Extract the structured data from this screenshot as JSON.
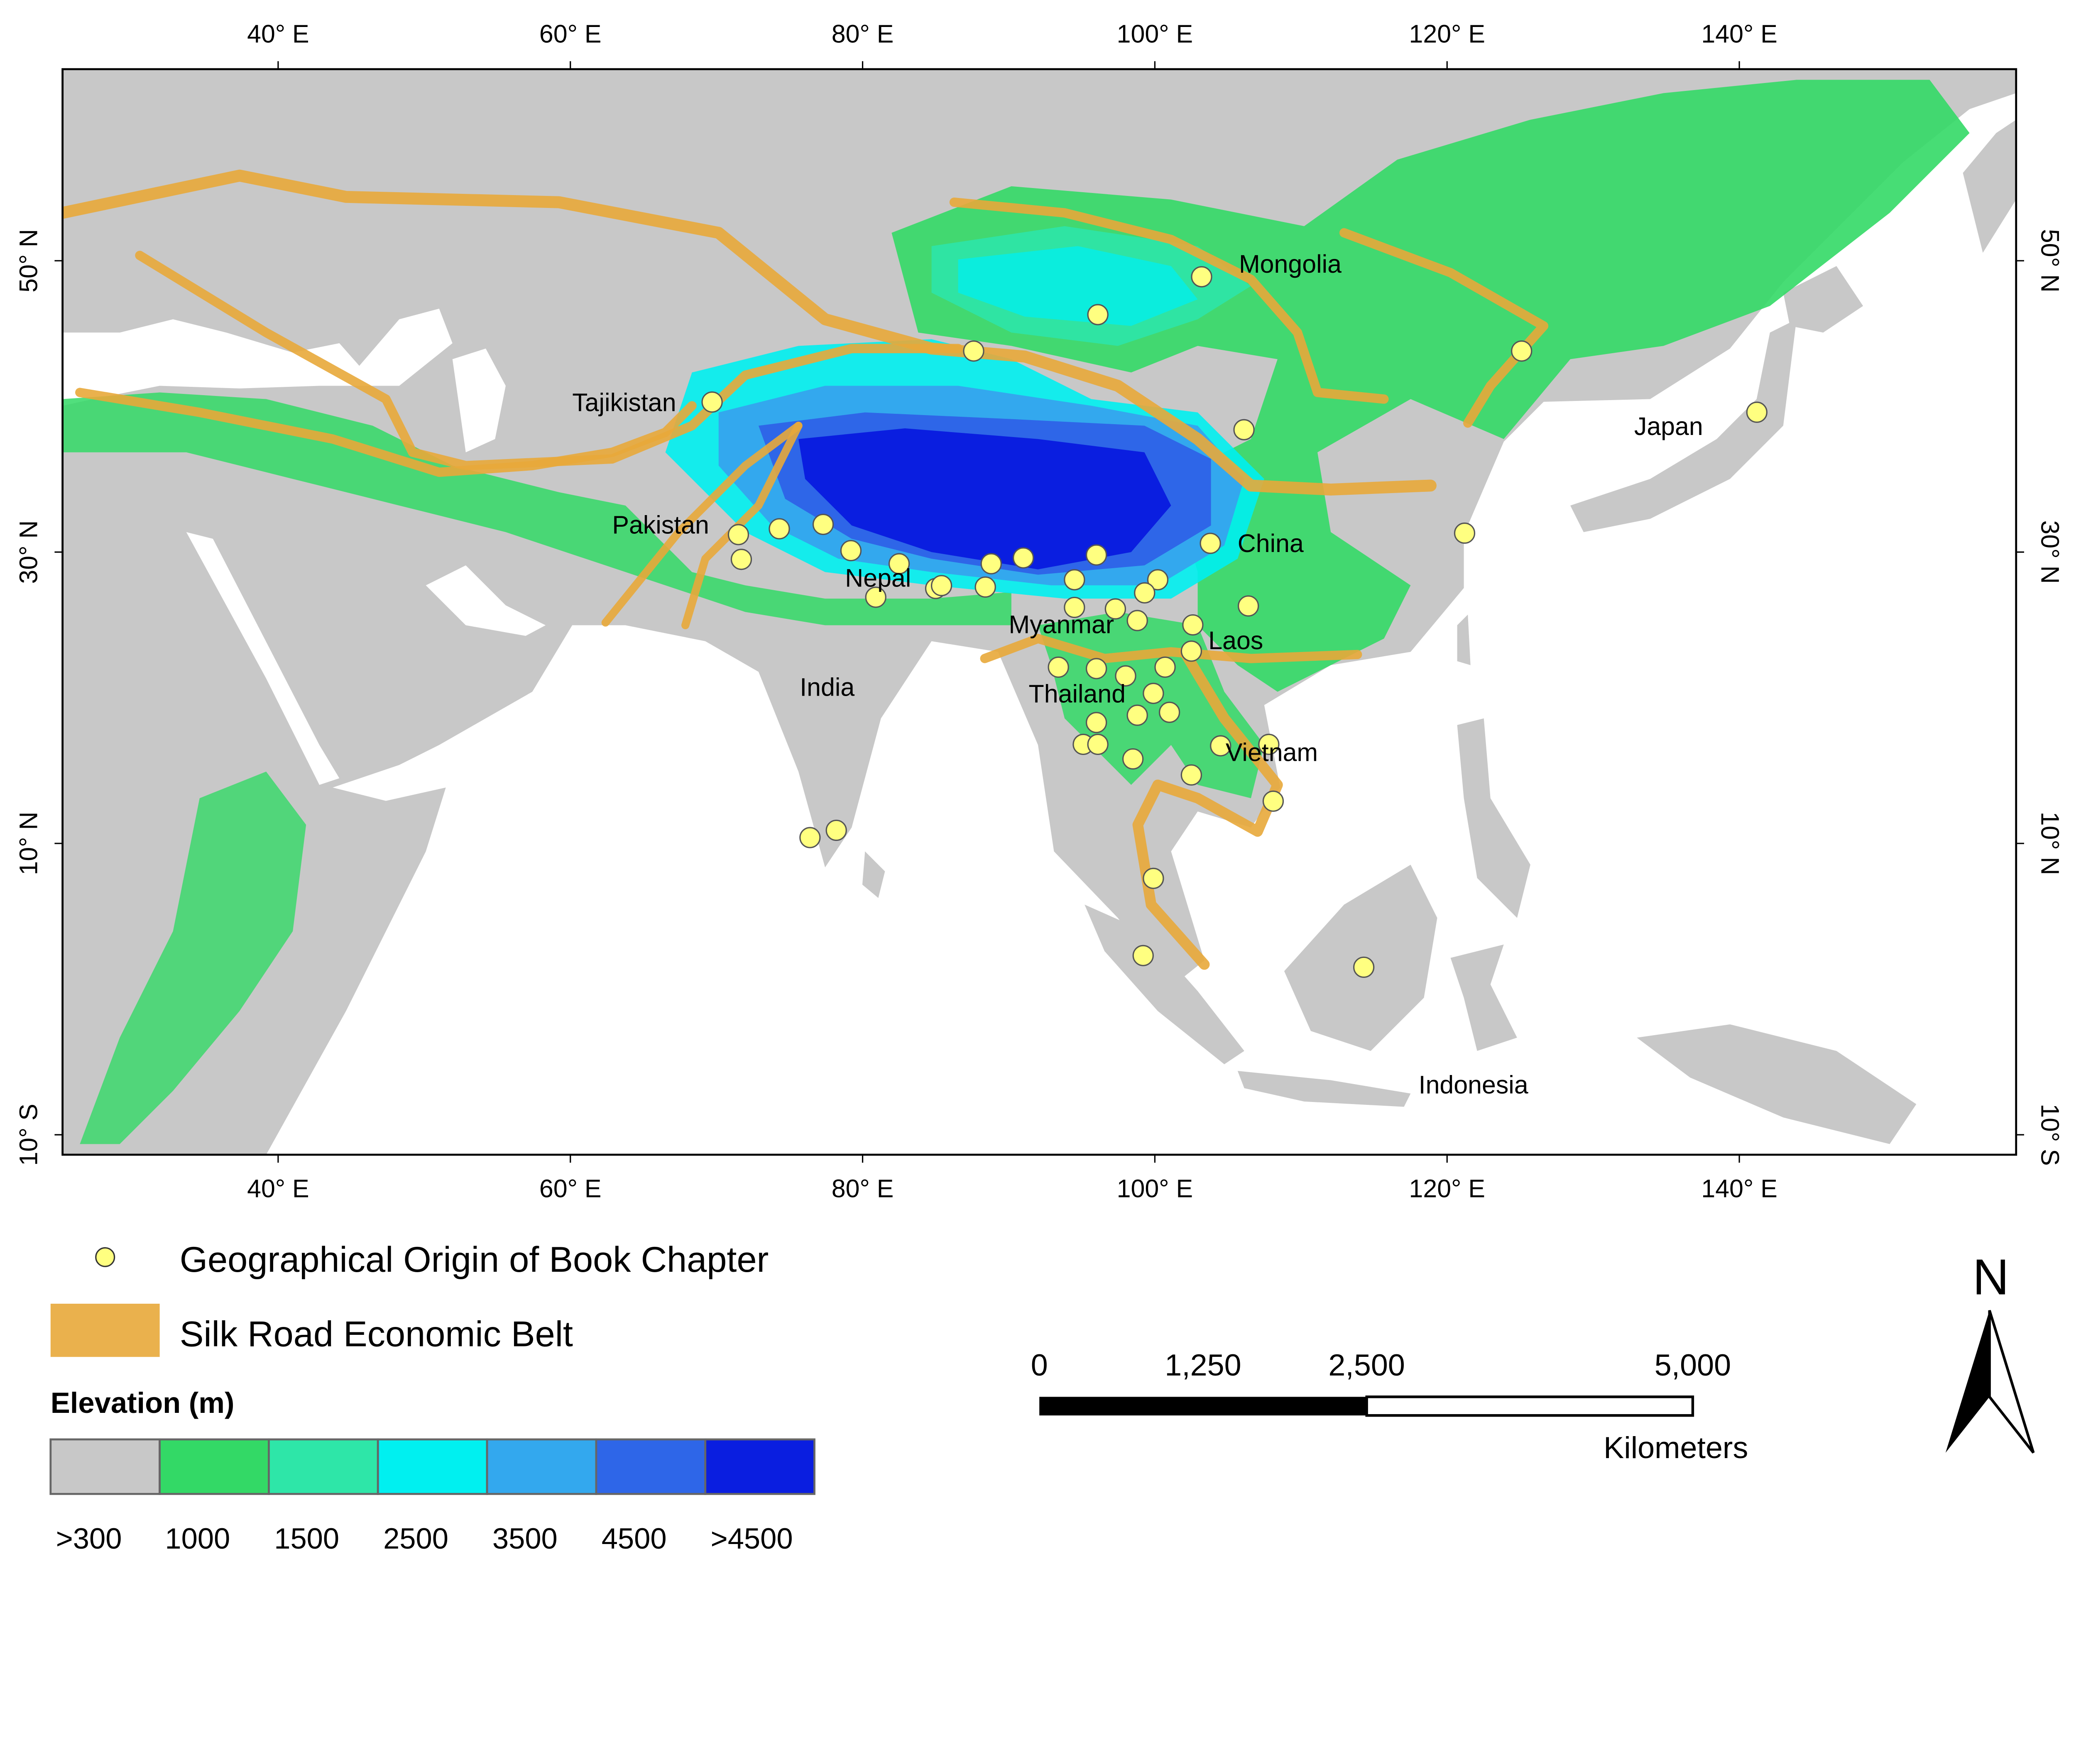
{
  "map": {
    "lon_ticks": [
      "40° E",
      "60° E",
      "80° E",
      "100° E",
      "120° E",
      "140° E"
    ],
    "lon_values": [
      40,
      60,
      80,
      100,
      120,
      140
    ],
    "lat_ticks": [
      "50° N",
      "30° N",
      "10° N",
      "10° S"
    ],
    "lat_values": [
      50,
      30,
      10,
      -10
    ],
    "countries": [
      "Mongolia",
      "Tajikistan",
      "Japan",
      "Pakistan",
      "China",
      "Nepal",
      "Myanmar",
      "Laos",
      "India",
      "Thailand",
      "Vietnam",
      "Indonesia"
    ],
    "points": [
      [
        69.7,
        40.3
      ],
      [
        87.6,
        43.8
      ],
      [
        96.1,
        46.3
      ],
      [
        103.2,
        48.9
      ],
      [
        106.1,
        38.4
      ],
      [
        125.1,
        43.8
      ],
      [
        141.2,
        39.6
      ],
      [
        121.2,
        31.3
      ],
      [
        103.8,
        30.6
      ],
      [
        71.5,
        31.2
      ],
      [
        74.3,
        31.6
      ],
      [
        71.7,
        29.5
      ],
      [
        77.3,
        31.9
      ],
      [
        79.2,
        30.1
      ],
      [
        82.5,
        29.2
      ],
      [
        80.9,
        26.9
      ],
      [
        85.0,
        27.5
      ],
      [
        85.4,
        27.7
      ],
      [
        88.4,
        27.6
      ],
      [
        88.8,
        29.2
      ],
      [
        91.0,
        29.6
      ],
      [
        94.5,
        28.1
      ],
      [
        96.0,
        29.8
      ],
      [
        100.2,
        28.1
      ],
      [
        99.3,
        27.2
      ],
      [
        94.5,
        26.2
      ],
      [
        97.3,
        26.1
      ],
      [
        98.8,
        25.3
      ],
      [
        102.6,
        25.0
      ],
      [
        106.4,
        26.3
      ],
      [
        102.5,
        23.2
      ],
      [
        100.7,
        22.1
      ],
      [
        98.0,
        21.5
      ],
      [
        96.0,
        22.0
      ],
      [
        93.4,
        22.1
      ],
      [
        99.9,
        20.3
      ],
      [
        101.0,
        19.0
      ],
      [
        98.8,
        18.8
      ],
      [
        96.0,
        18.3
      ],
      [
        95.1,
        16.8
      ],
      [
        96.1,
        16.8
      ],
      [
        98.5,
        15.8
      ],
      [
        104.5,
        16.7
      ],
      [
        107.8,
        16.8
      ],
      [
        102.5,
        14.7
      ],
      [
        108.1,
        12.9
      ],
      [
        76.4,
        10.4
      ],
      [
        78.2,
        10.9
      ],
      [
        99.9,
        7.6
      ],
      [
        99.2,
        2.3
      ],
      [
        114.3,
        1.5
      ]
    ],
    "colors": {
      "point_fill": "#FFFF80",
      "belt": "#E8A93A",
      "land": "#C8C8C8",
      "water": "#FFFFFF"
    }
  },
  "legend": {
    "point_label": "Geographical Origin of Book Chapter",
    "belt_label": "Silk Road Economic Belt",
    "elevation_title": "Elevation (m)",
    "elevation_classes": [
      {
        "label": ">300",
        "color": "#C8C8C8"
      },
      {
        "label": "1000",
        "color": "#33D966"
      },
      {
        "label": "1500",
        "color": "#2EE6A8"
      },
      {
        "label": "2500",
        "color": "#00F0F0"
      },
      {
        "label": "3500",
        "color": "#33A8EE"
      },
      {
        "label": "4500",
        "color": "#2E66E8"
      },
      {
        "label": ">4500",
        "color": "#0A1EE0"
      }
    ]
  },
  "scalebar": {
    "labels": [
      "0",
      "1,250",
      "2,500",
      "5,000"
    ],
    "unit": "Kilometers"
  },
  "north_arrow": {
    "label": "N"
  }
}
